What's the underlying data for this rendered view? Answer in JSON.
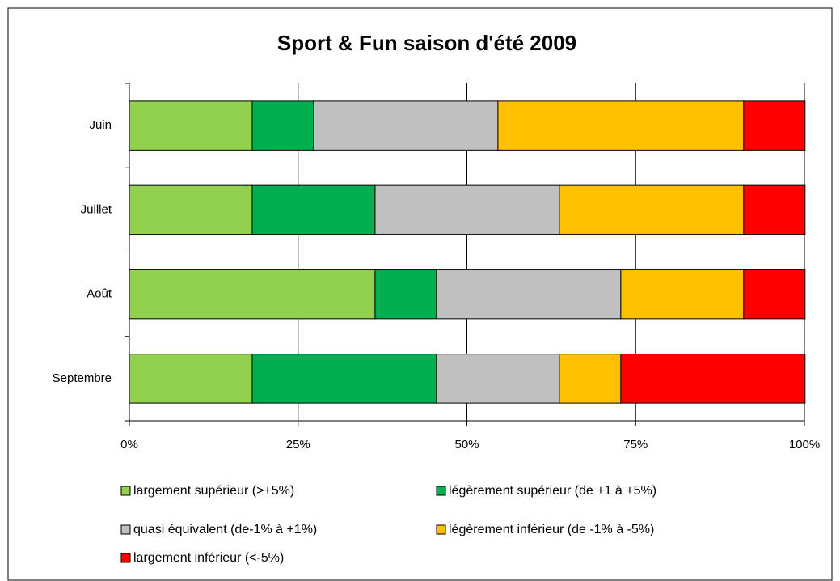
{
  "chart_data": {
    "type": "stacked_bar_horizontal",
    "title": "Sport & Fun saison d'été 2009",
    "categories": [
      "Juin",
      "Juillet",
      "Août",
      "Septembre"
    ],
    "series": [
      {
        "name": "largement supérieur (>+5%)",
        "color": "#92d050",
        "values": [
          18.2,
          18.2,
          36.4,
          18.2
        ]
      },
      {
        "name": "légèrement supérieur (de +1 à +5%)",
        "color": "#00b050",
        "values": [
          9.1,
          18.2,
          9.1,
          27.3
        ]
      },
      {
        "name": "quasi équivalent (de-1% à +1%)",
        "color": "#c0c0c0",
        "values": [
          27.3,
          27.3,
          27.3,
          18.2
        ]
      },
      {
        "name": "légèrement inférieur (de -1% à -5%)",
        "color": "#ffc000",
        "values": [
          36.4,
          27.3,
          18.2,
          9.1
        ]
      },
      {
        "name": "largement inférieur (<-5%)",
        "color": "#ff0000",
        "values": [
          9.1,
          9.1,
          9.1,
          27.3
        ]
      }
    ],
    "xlim": [
      0,
      100
    ],
    "xticks": [
      {
        "value": 0,
        "label": "0%"
      },
      {
        "value": 25,
        "label": "25%"
      },
      {
        "value": 50,
        "label": "50%"
      },
      {
        "value": 75,
        "label": "75%"
      },
      {
        "value": 100,
        "label": "100%"
      }
    ],
    "grid": true,
    "legend": "bottom"
  }
}
